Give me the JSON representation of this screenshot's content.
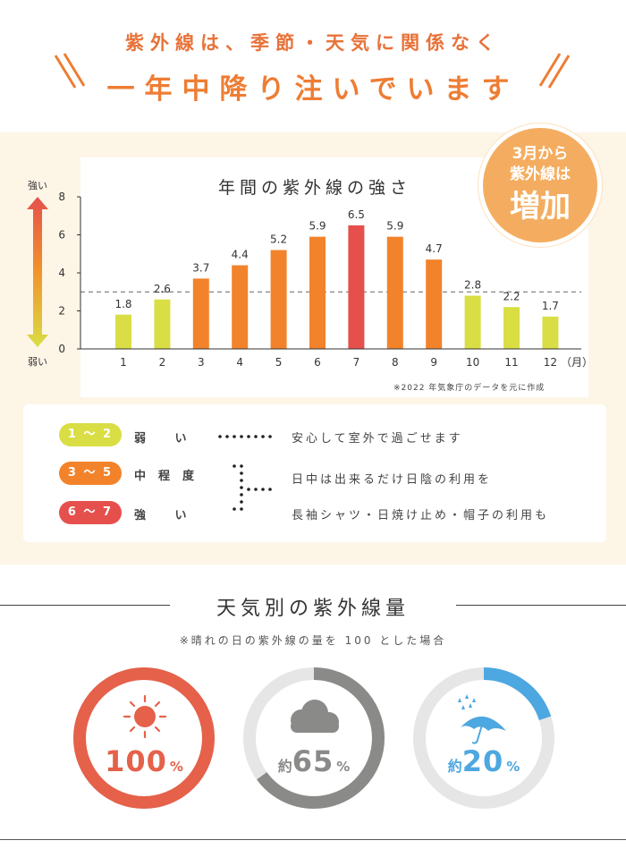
{
  "header": {
    "line1": "紫外線は、季節・天気に関係なく",
    "line2": "一年中降り注いでいます"
  },
  "badge": {
    "line1": "3月から",
    "line2": "紫外線は",
    "line3": "増加"
  },
  "chart_data": {
    "type": "bar",
    "title": "年間の紫外線の強さ",
    "categories": [
      "1",
      "2",
      "3",
      "4",
      "5",
      "6",
      "7",
      "8",
      "9",
      "10",
      "11",
      "12"
    ],
    "values": [
      1.8,
      2.6,
      3.7,
      4.4,
      5.2,
      5.9,
      6.5,
      5.9,
      4.7,
      2.8,
      2.2,
      1.7
    ],
    "value_labels": [
      "1.8",
      "2.6",
      "3.7",
      "4.4",
      "5.2",
      "5.9",
      "6.5",
      "5.9",
      "4.7",
      "2.8",
      "2.2",
      "1.7"
    ],
    "x_unit": "（月）",
    "ylim": [
      0,
      8
    ],
    "yticks": [
      "0",
      "2",
      "4",
      "6",
      "8"
    ],
    "reference_line": 3,
    "axis_top_label": "強い",
    "axis_bottom_label": "弱い",
    "colors": {
      "weak": "#d9de45",
      "mid": "#f2832b",
      "strong": "#e5504c"
    },
    "grid": false
  },
  "source_note": "※2022 年気象庁のデータを元に作成",
  "legend": [
    {
      "range": "1 ～ 2",
      "level": "弱 い",
      "desc": "安心して室外で過ごせます",
      "color": "#d9de45"
    },
    {
      "range": "3 ～ 5",
      "level": "中程度",
      "desc": "日中は出来るだけ日陰の利用を",
      "color": "#f2832b"
    },
    {
      "range": "6 ～ 7",
      "level": "強 い",
      "desc": "長袖シャツ・日焼け止め・帽子の利用も",
      "color": "#e5504c"
    }
  ],
  "weather": {
    "title": "天気別の紫外線量",
    "note": "※晴れの日の紫外線の量を 100 とした場合",
    "items": [
      {
        "prefix": "",
        "value": "100",
        "unit": "%",
        "fraction": 1.0,
        "icon": "sun-icon",
        "color": "#e5614a"
      },
      {
        "prefix": "約",
        "value": "65",
        "unit": "%",
        "fraction": 0.65,
        "icon": "cloud-icon",
        "color": "#8a8a88"
      },
      {
        "prefix": "約",
        "value": "20",
        "unit": "%",
        "fraction": 0.2,
        "icon": "umbrella-rain-icon",
        "color": "#4da7e0"
      }
    ]
  }
}
